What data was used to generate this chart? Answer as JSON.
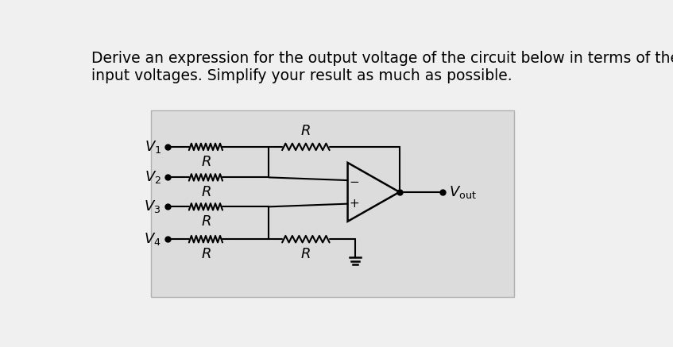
{
  "title_line1": "Derive an expression for the output voltage of the circuit below in terms of the four",
  "title_line2": "input voltages. Simplify your result as much as possible.",
  "text_color": "#000000",
  "title_fontsize": 13.5,
  "label_fontsize": 13,
  "R_label_fontsize": 13,
  "V1_label": "$V_1$",
  "V2_label": "$V_2$",
  "V3_label": "$V_3$",
  "V4_label": "$V_4$",
  "Vout_label": "$V_{\\mathrm{out}}$",
  "R_label": "$R$",
  "bg_color": "#f0f0f0",
  "box_color": "#dcdcdc"
}
